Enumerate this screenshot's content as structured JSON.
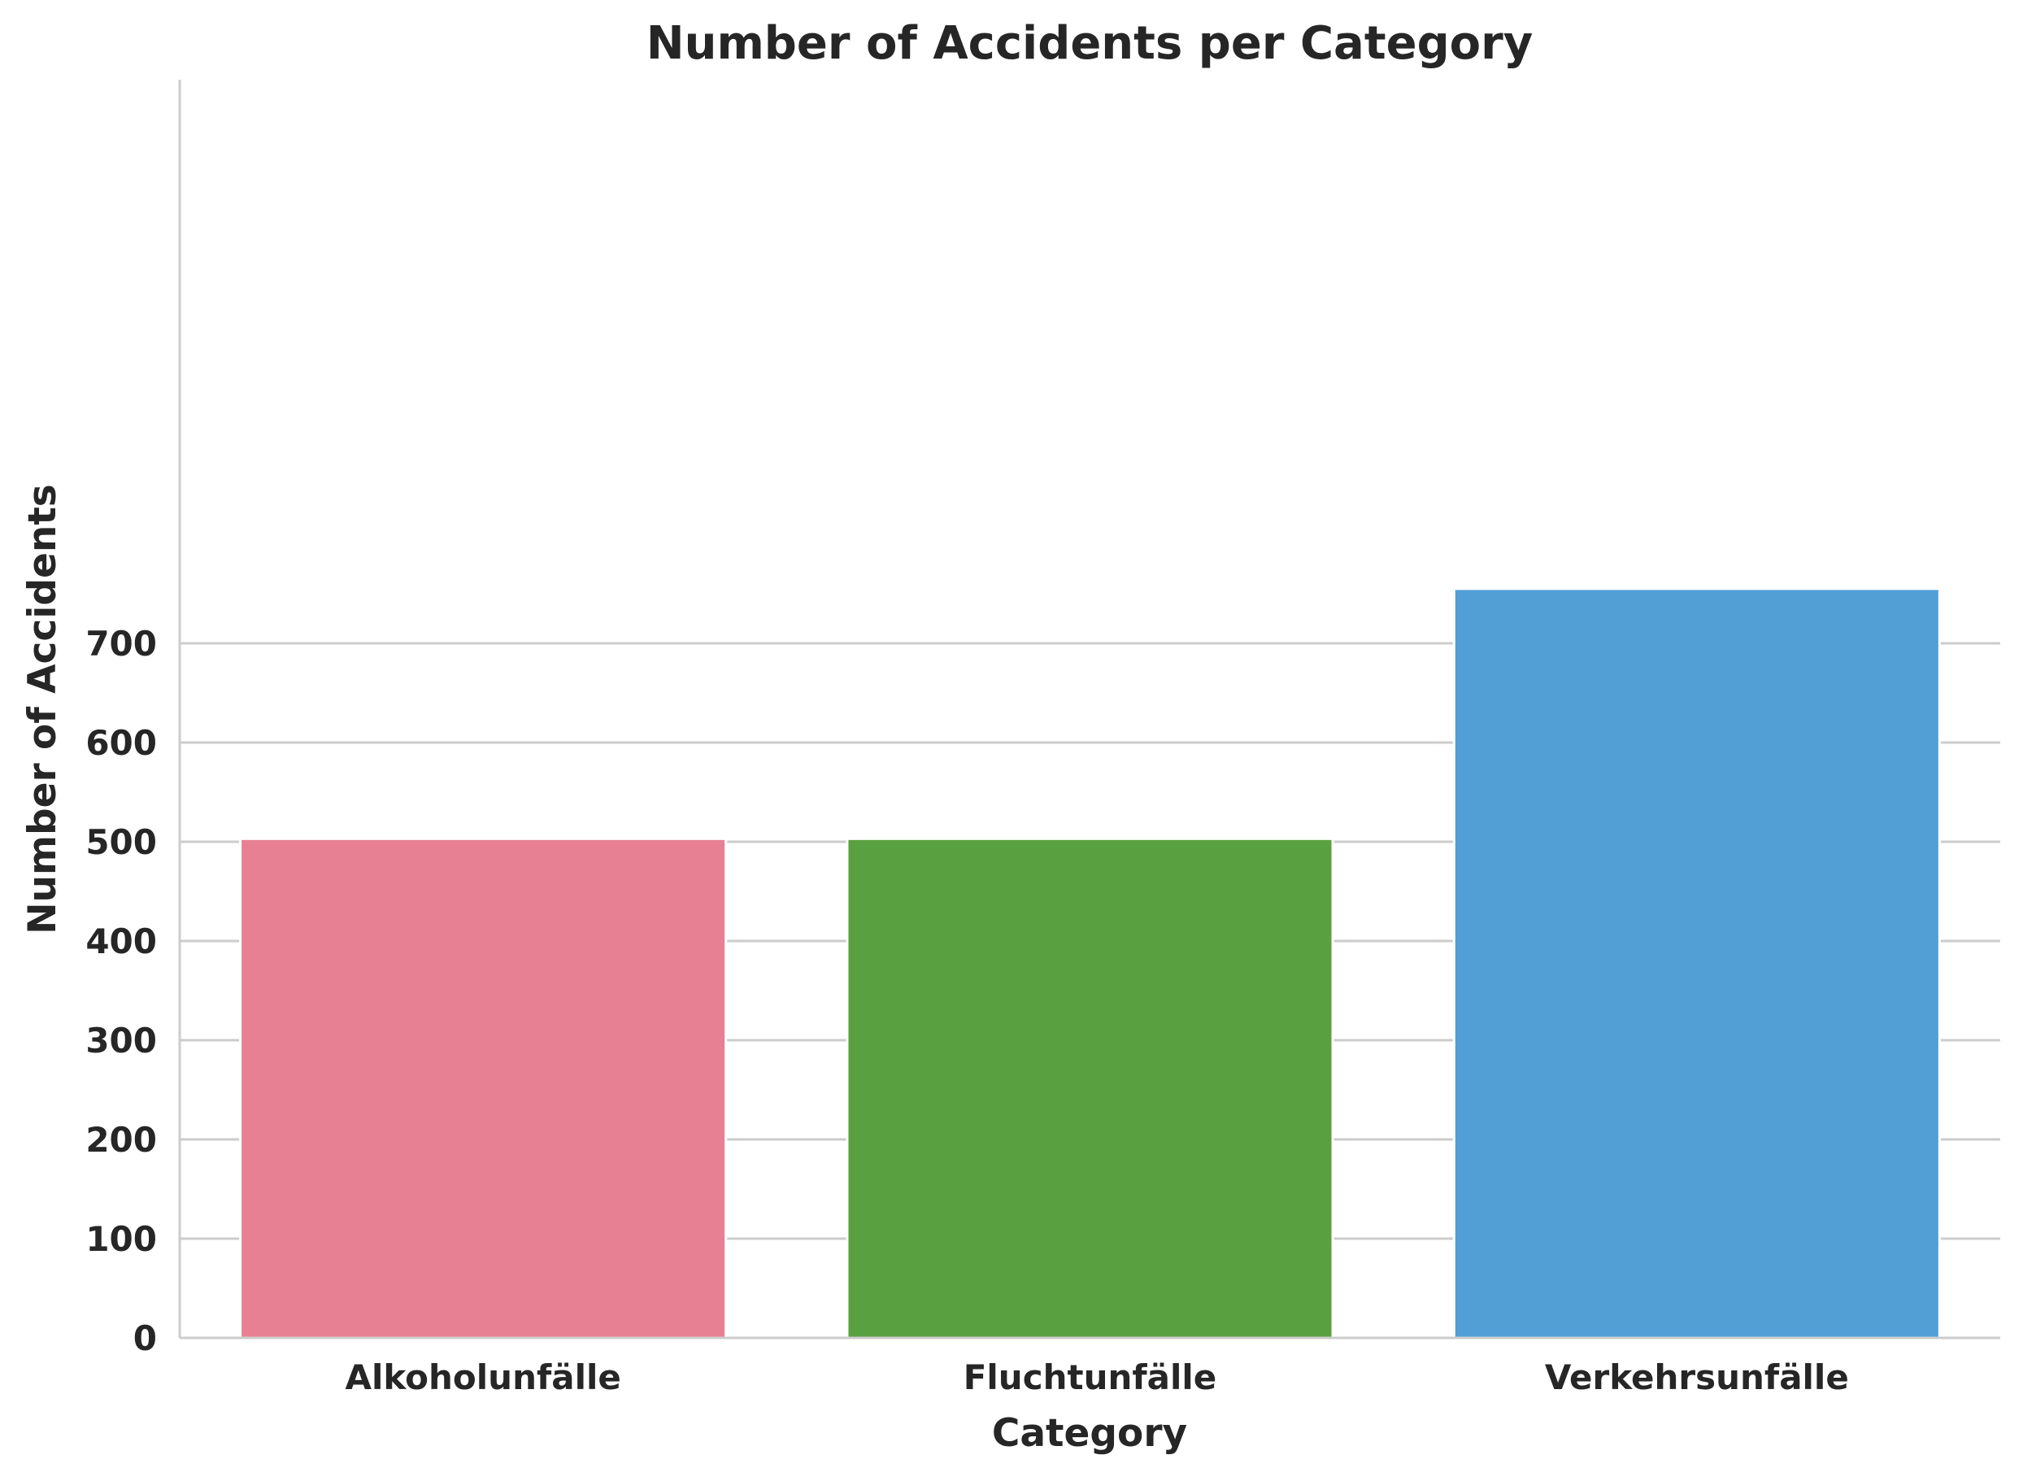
{
  "chart_data": {
    "type": "bar",
    "title": "Number of Accidents per Category",
    "xlabel": "Category",
    "ylabel": "Number of Accidents",
    "categories": [
      "Alkoholunfälle",
      "Fluchtunfälle",
      "Verkehrsunfälle"
    ],
    "values": [
      503,
      503,
      755
    ],
    "colors": [
      "#e88093",
      "#59a140",
      "#529fd6"
    ],
    "ylim": [
      0,
      800
    ],
    "yticks": [
      0,
      100,
      200,
      300,
      400,
      500,
      600,
      700
    ],
    "grid": "horizontal",
    "legend": "none"
  }
}
